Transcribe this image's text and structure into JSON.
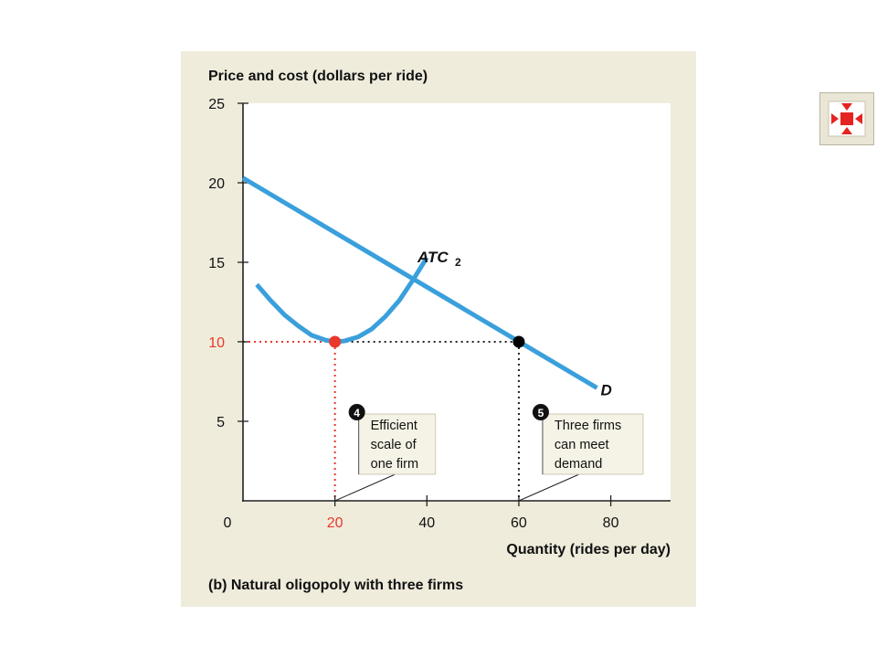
{
  "colors": {
    "panel_bg": "#efecdc",
    "plot_bg": "#ffffff",
    "curve": "#3aa0dc",
    "highlight": "#e8392b",
    "axis": "#222222",
    "note_bg": "#f5f3e6"
  },
  "expand_button": {
    "icon": "expand-arrows-icon",
    "colors": {
      "arrows": "#e52421",
      "border": "#b9b49e"
    }
  },
  "chart_data": {
    "type": "line",
    "title": "(b) Natural oligopoly with three firms",
    "ylabel": "Price and cost (dollars per ride)",
    "xlabel": "Quantity (rides per day)",
    "xlim": [
      0,
      93
    ],
    "ylim": [
      0,
      25
    ],
    "x_ticks": [
      {
        "value": 0,
        "label": "0"
      },
      {
        "value": 20,
        "label": "20",
        "highlight": true
      },
      {
        "value": 40,
        "label": "40"
      },
      {
        "value": 60,
        "label": "60"
      },
      {
        "value": 80,
        "label": "80"
      }
    ],
    "y_ticks": [
      {
        "value": 5,
        "label": "5"
      },
      {
        "value": 10,
        "label": "10",
        "highlight": true
      },
      {
        "value": 15,
        "label": "15"
      },
      {
        "value": 20,
        "label": "20"
      },
      {
        "value": 25,
        "label": "25"
      }
    ],
    "series": [
      {
        "name": "D",
        "label": "D",
        "x": [
          0,
          77
        ],
        "y": [
          20.3,
          7.1
        ]
      },
      {
        "name": "ATC2",
        "label": "ATC",
        "label_subscript": "2",
        "x": [
          3,
          6,
          9,
          12,
          15,
          18,
          20,
          22,
          25,
          28,
          31,
          34,
          37,
          40
        ],
        "y": [
          13.6,
          12.6,
          11.7,
          11.0,
          10.4,
          10.1,
          10.0,
          10.05,
          10.3,
          10.8,
          11.6,
          12.6,
          13.9,
          15.3
        ]
      }
    ],
    "points": [
      {
        "x": 20,
        "y": 10,
        "color": "#e8392b"
      },
      {
        "x": 60,
        "y": 10,
        "color": "#000000"
      }
    ],
    "guides": [
      {
        "from": [
          0,
          10
        ],
        "to": [
          20,
          10
        ],
        "color": "#e8392b"
      },
      {
        "from": [
          20,
          10
        ],
        "to": [
          20,
          0
        ],
        "color": "#e8392b"
      },
      {
        "from": [
          20,
          10
        ],
        "to": [
          60,
          10
        ],
        "color": "#222222"
      },
      {
        "from": [
          60,
          10
        ],
        "to": [
          60,
          0
        ],
        "color": "#222222"
      }
    ],
    "annotations": [
      {
        "badge": "4",
        "lines": [
          "Efficient",
          "scale of",
          "one firm"
        ],
        "x": 20
      },
      {
        "badge": "5",
        "lines": [
          "Three firms",
          "can meet",
          "demand"
        ],
        "x": 60
      }
    ]
  }
}
